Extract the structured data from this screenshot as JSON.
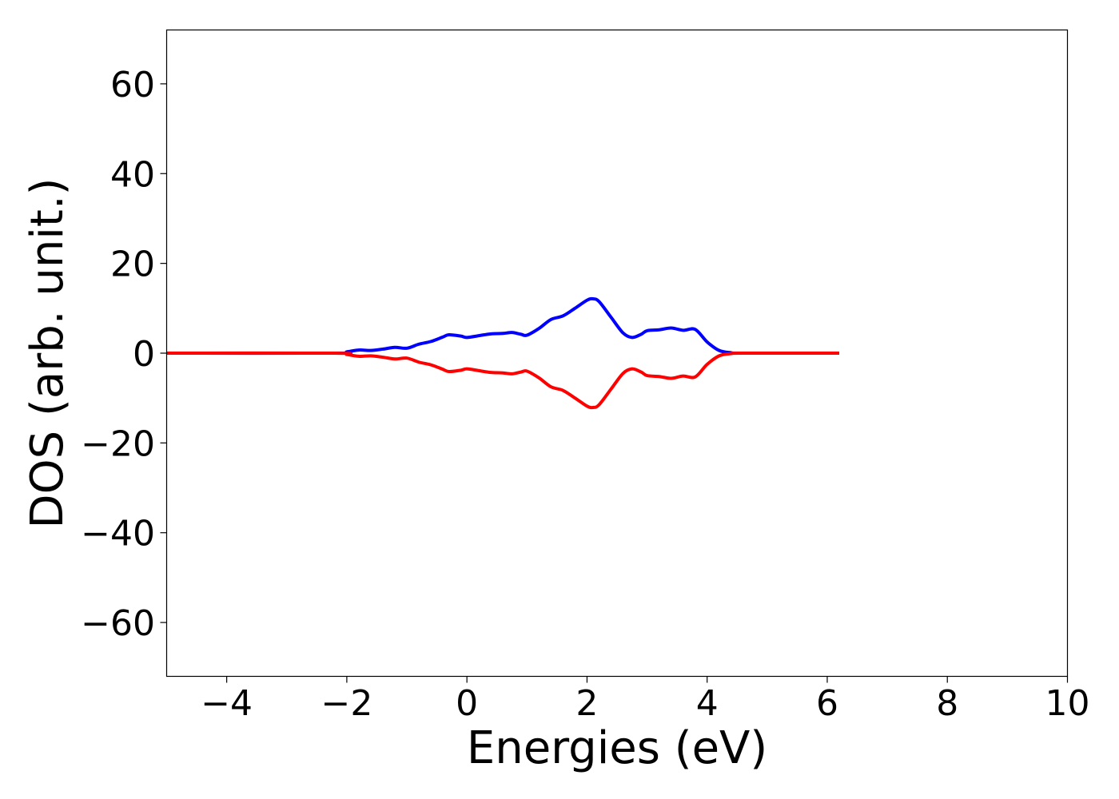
{
  "chart_data": {
    "type": "line",
    "title": "",
    "xlabel": "Energies (eV)",
    "ylabel": "DOS (arb. unit.)",
    "xlim": [
      -5,
      10
    ],
    "ylim": [
      -72,
      72
    ],
    "x_ticks": [
      {
        "value": -4,
        "label": "−4"
      },
      {
        "value": -2,
        "label": "−2"
      },
      {
        "value": 0,
        "label": "0"
      },
      {
        "value": 2,
        "label": "2"
      },
      {
        "value": 4,
        "label": "4"
      },
      {
        "value": 6,
        "label": "6"
      },
      {
        "value": 8,
        "label": "8"
      },
      {
        "value": 10,
        "label": "10"
      }
    ],
    "y_ticks": [
      {
        "value": 60,
        "label": "60"
      },
      {
        "value": 40,
        "label": "40"
      },
      {
        "value": 20,
        "label": "20"
      },
      {
        "value": 0,
        "label": "0"
      },
      {
        "value": -20,
        "label": "−20"
      },
      {
        "value": -40,
        "label": "−40"
      },
      {
        "value": -60,
        "label": "−60"
      }
    ],
    "grid": false,
    "legend": "none",
    "series": [
      {
        "color": "#0000ff",
        "x": [
          -5.0,
          -2.2,
          -2.0,
          -1.8,
          -1.6,
          -1.4,
          -1.2,
          -1.0,
          -0.8,
          -0.6,
          -0.4,
          -0.3,
          -0.1,
          0.0,
          0.2,
          0.4,
          0.6,
          0.75,
          0.9,
          1.0,
          1.2,
          1.4,
          1.6,
          1.8,
          2.0,
          2.1,
          2.2,
          2.4,
          2.6,
          2.75,
          2.9,
          3.0,
          3.2,
          3.4,
          3.6,
          3.8,
          4.0,
          4.2,
          4.4,
          4.6,
          6.2
        ],
        "y": [
          0.0,
          0.0,
          0.3,
          0.7,
          0.6,
          0.9,
          1.3,
          1.1,
          2.0,
          2.6,
          3.6,
          4.1,
          3.8,
          3.5,
          3.9,
          4.3,
          4.4,
          4.6,
          4.2,
          4.0,
          5.5,
          7.5,
          8.3,
          10.0,
          11.8,
          12.1,
          11.5,
          8.0,
          4.5,
          3.5,
          4.2,
          5.0,
          5.2,
          5.6,
          5.1,
          5.3,
          2.5,
          0.6,
          0.1,
          0.0,
          0.0
        ]
      },
      {
        "color": "#ff0000",
        "x": [
          -5.0,
          -2.2,
          -2.0,
          -1.8,
          -1.6,
          -1.4,
          -1.2,
          -1.0,
          -0.8,
          -0.6,
          -0.4,
          -0.3,
          -0.1,
          0.0,
          0.2,
          0.4,
          0.6,
          0.75,
          0.9,
          1.0,
          1.2,
          1.4,
          1.6,
          1.8,
          2.0,
          2.1,
          2.2,
          2.4,
          2.6,
          2.75,
          2.9,
          3.0,
          3.2,
          3.4,
          3.6,
          3.8,
          4.0,
          4.2,
          4.4,
          4.6,
          6.2
        ],
        "y": [
          0.0,
          0.0,
          -0.3,
          -0.7,
          -0.6,
          -0.9,
          -1.3,
          -1.1,
          -2.0,
          -2.6,
          -3.6,
          -4.1,
          -3.8,
          -3.5,
          -3.9,
          -4.3,
          -4.4,
          -4.6,
          -4.2,
          -4.0,
          -5.5,
          -7.5,
          -8.3,
          -10.0,
          -11.8,
          -12.1,
          -11.5,
          -8.0,
          -4.5,
          -3.5,
          -4.2,
          -5.0,
          -5.2,
          -5.6,
          -5.1,
          -5.3,
          -2.5,
          -0.6,
          -0.1,
          0.0,
          0.0
        ]
      }
    ]
  }
}
